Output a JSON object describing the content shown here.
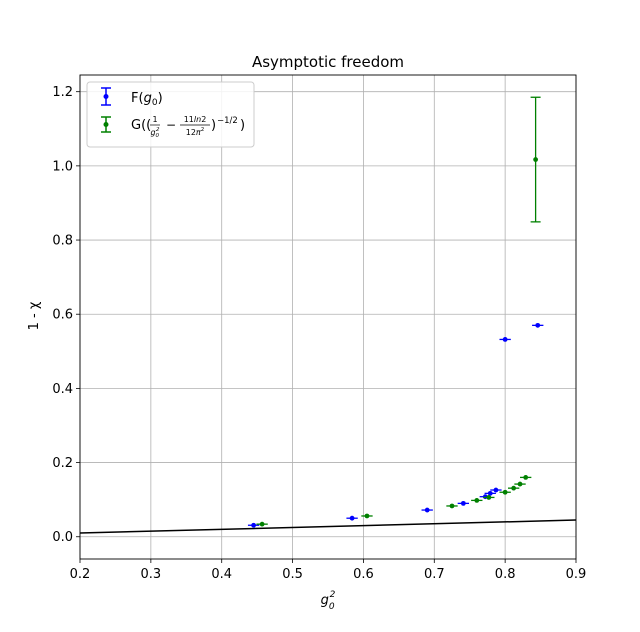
{
  "chart_data": {
    "type": "scatter",
    "title": "Asymptotic freedom",
    "xlabel": "g_0^2",
    "ylabel": "1 - χ",
    "xlim": [
      0.2,
      0.9
    ],
    "ylim": [
      -0.06,
      1.245
    ],
    "xticks": [
      0.2,
      0.3,
      0.4,
      0.5,
      0.6,
      0.7,
      0.8,
      0.9
    ],
    "xtick_labels": [
      "0.2",
      "0.3",
      "0.4",
      "0.5",
      "0.6",
      "0.7",
      "0.8",
      "0.9"
    ],
    "yticks": [
      0.0,
      0.2,
      0.4,
      0.6,
      0.8,
      1.0,
      1.2
    ],
    "ytick_labels": [
      "0.0",
      "0.2",
      "0.4",
      "0.6",
      "0.8",
      "1.0",
      "1.2"
    ],
    "grid": true,
    "legend_position": "top-left",
    "series": [
      {
        "name": "F(g_0)",
        "legend_label": "F(g₀)",
        "color": "#0000ff",
        "points": [
          {
            "x": 0.445,
            "y": 0.031,
            "xerr": 0.008,
            "yerr": 0.002
          },
          {
            "x": 0.584,
            "y": 0.05,
            "xerr": 0.008,
            "yerr": 0.002
          },
          {
            "x": 0.69,
            "y": 0.072,
            "xerr": 0.008,
            "yerr": 0.002
          },
          {
            "x": 0.741,
            "y": 0.09,
            "xerr": 0.008,
            "yerr": 0.002
          },
          {
            "x": 0.772,
            "y": 0.108,
            "xerr": 0.008,
            "yerr": 0.002
          },
          {
            "x": 0.779,
            "y": 0.117,
            "xerr": 0.008,
            "yerr": 0.002
          },
          {
            "x": 0.787,
            "y": 0.126,
            "xerr": 0.008,
            "yerr": 0.002
          },
          {
            "x": 0.8,
            "y": 0.532,
            "xerr": 0.008,
            "yerr": 0.003
          },
          {
            "x": 0.846,
            "y": 0.57,
            "xerr": 0.008,
            "yerr": 0.003
          }
        ]
      },
      {
        "name": "G",
        "legend_label": "G((1/g₀² − 11ln2/12π²)^(−1/2))",
        "color": "#008000",
        "points": [
          {
            "x": 0.457,
            "y": 0.034,
            "xerr": 0.008,
            "yerr": 0.002
          },
          {
            "x": 0.605,
            "y": 0.056,
            "xerr": 0.008,
            "yerr": 0.002
          },
          {
            "x": 0.725,
            "y": 0.083,
            "xerr": 0.008,
            "yerr": 0.002
          },
          {
            "x": 0.76,
            "y": 0.098,
            "xerr": 0.008,
            "yerr": 0.002
          },
          {
            "x": 0.777,
            "y": 0.106,
            "xerr": 0.008,
            "yerr": 0.002
          },
          {
            "x": 0.8,
            "y": 0.12,
            "xerr": 0.008,
            "yerr": 0.002
          },
          {
            "x": 0.812,
            "y": 0.131,
            "xerr": 0.008,
            "yerr": 0.002
          },
          {
            "x": 0.821,
            "y": 0.142,
            "xerr": 0.008,
            "yerr": 0.002
          },
          {
            "x": 0.829,
            "y": 0.16,
            "xerr": 0.008,
            "yerr": 0.002
          },
          {
            "x": 0.843,
            "y": 1.017,
            "xerr": 0.0,
            "yerr": 0.168
          }
        ]
      }
    ],
    "line": {
      "color": "#000000",
      "x": [
        0.2,
        0.9
      ],
      "y": [
        0.01,
        0.045
      ]
    }
  }
}
